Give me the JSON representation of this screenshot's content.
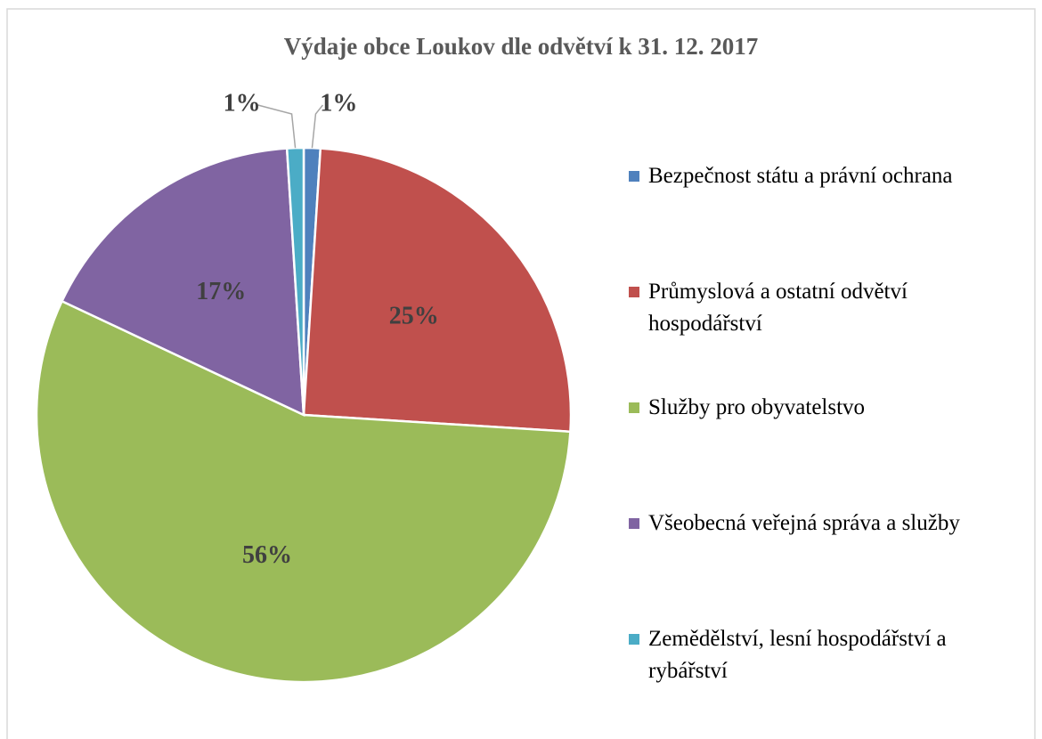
{
  "chart_data": {
    "type": "pie",
    "title": "Výdaje obce Loukov dle odvětví k 31. 12. 2017",
    "categories": [
      "Bezpečnost státu a právní ochrana",
      "Průmyslová a ostatní odvětví hospodářství",
      "Služby pro obyvatelstvo",
      "Všeobecná veřejná správa a služby",
      "Zemědělství, lesní hospodářství a rybářství"
    ],
    "values": [
      1,
      25,
      56,
      17,
      1
    ],
    "value_labels": [
      "1%",
      "25%",
      "56%",
      "17%",
      "1%"
    ],
    "colors": [
      "#4f81bd",
      "#c0504d",
      "#9bbb59",
      "#8064a2",
      "#4bacc6"
    ],
    "legend": "right"
  }
}
